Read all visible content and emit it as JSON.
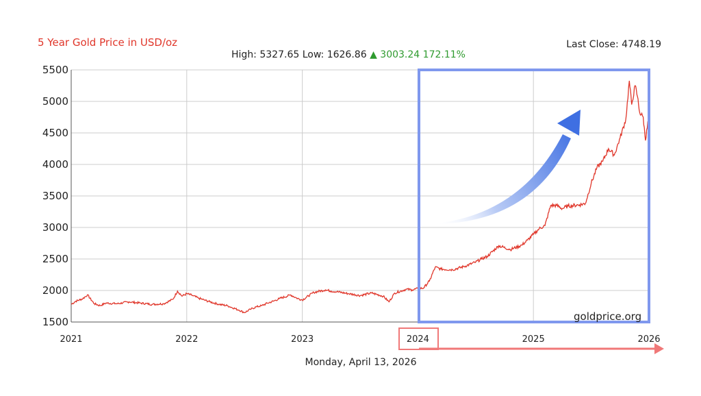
{
  "header": {
    "title": "5 Year Gold Price in USD/oz",
    "high_label": "High:",
    "high_value": "5327.65",
    "low_label": "Low:",
    "low_value": "1626.86",
    "change_arrow": "▲",
    "change_value": "3003.24",
    "change_percent": "172.11%",
    "last_close": "Last Close: 4748.19"
  },
  "footer": {
    "date": "Monday, April 13, 2026"
  },
  "watermark": "goldprice.org",
  "colors": {
    "series": "#e0362a",
    "grid": "#cccccc",
    "highlight_box": "#7f98ee",
    "arrow": "#3f6fe2",
    "annotation_red": "#f07878",
    "up": "#2e9a2e"
  },
  "annotations": {
    "highlight_start_label": "2024",
    "trend_arrow_icon": "arrow-up-right-icon",
    "timeline_arrow_icon": "arrow-right-icon"
  },
  "chart_data": {
    "type": "line",
    "title": "5 Year Gold Price in USD/oz",
    "xlabel": "",
    "ylabel": "",
    "xlim": [
      2021.0,
      2026.0
    ],
    "ylim": [
      1500,
      5500
    ],
    "yticks": [
      1500,
      2000,
      2500,
      3000,
      3500,
      4000,
      4500,
      5000,
      5500
    ],
    "xticks": [
      "2021",
      "2022",
      "2023",
      "2024",
      "2025",
      "2026"
    ],
    "grid": true,
    "series": [
      {
        "x": [
          2021.0,
          2021.04,
          2021.1,
          2021.14,
          2021.2,
          2021.25,
          2021.3,
          2021.4,
          2021.5,
          2021.6,
          2021.7,
          2021.8,
          2021.88,
          2021.92,
          2021.96,
          2022.0,
          2022.05,
          2022.1,
          2022.15,
          2022.2,
          2022.28,
          2022.35,
          2022.45,
          2022.5,
          2022.55,
          2022.6,
          2022.65,
          2022.7,
          2022.75,
          2022.8,
          2022.9,
          2022.95,
          2023.0,
          2023.1,
          2023.2,
          2023.25,
          2023.3,
          2023.4,
          2023.5,
          2023.6,
          2023.7,
          2023.75,
          2023.8,
          2023.9,
          2023.95,
          2024.0,
          2024.05,
          2024.1,
          2024.15,
          2024.2,
          2024.3,
          2024.4,
          2024.5,
          2024.55,
          2024.6,
          2024.7,
          2024.8,
          2024.9,
          2024.95,
          2025.0,
          2025.05,
          2025.1,
          2025.15,
          2025.2,
          2025.25,
          2025.3,
          2025.4,
          2025.45,
          2025.5,
          2025.55,
          2025.6,
          2025.65,
          2025.7,
          2025.75,
          2025.8,
          2025.83,
          2025.85,
          2025.88,
          2025.9,
          2025.92,
          2025.95,
          2025.97,
          2025.98,
          2026.0
        ],
        "values": [
          1780,
          1830,
          1870,
          1930,
          1790,
          1760,
          1800,
          1790,
          1820,
          1800,
          1780,
          1790,
          1860,
          1990,
          1910,
          1950,
          1920,
          1880,
          1850,
          1820,
          1780,
          1760,
          1690,
          1650,
          1700,
          1740,
          1760,
          1800,
          1830,
          1870,
          1930,
          1880,
          1850,
          1970,
          2010,
          1990,
          1980,
          1950,
          1920,
          1960,
          1910,
          1820,
          1960,
          2020,
          2010,
          2030,
          2040,
          2150,
          2370,
          2340,
          2330,
          2380,
          2450,
          2500,
          2540,
          2710,
          2650,
          2720,
          2800,
          2890,
          2980,
          3030,
          3350,
          3350,
          3300,
          3340,
          3360,
          3380,
          3700,
          3950,
          4050,
          4250,
          4150,
          4420,
          4720,
          5327.65,
          4950,
          5250,
          5080,
          4820,
          4750,
          4380,
          4550,
          4748.19
        ]
      }
    ]
  }
}
